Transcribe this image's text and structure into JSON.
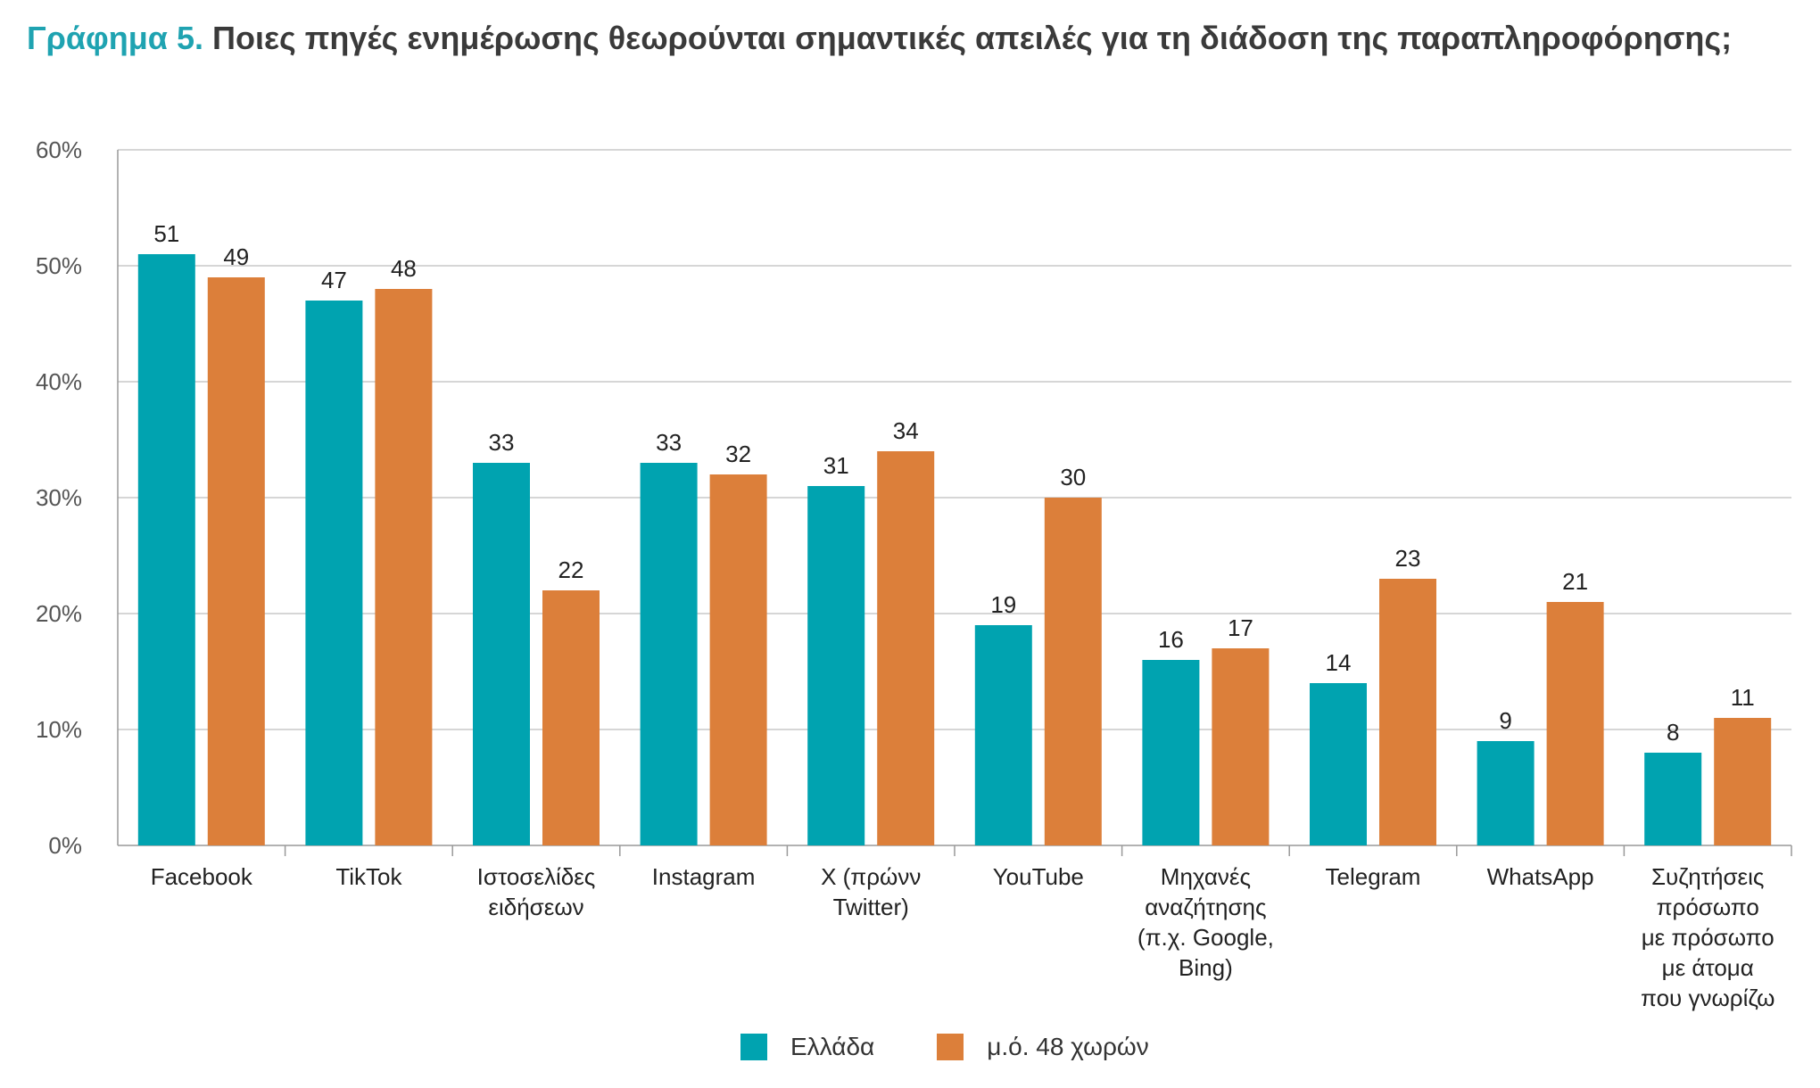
{
  "title": {
    "prefix": "Γράφημα 5.",
    "text": "Ποιες πηγές ενημέρωσης θεωρούνται σημαντικές απειλές για τη διάδοση της παραπληροφόρησης;"
  },
  "colors": {
    "greece": "#00a3b0",
    "avg": "#dc7f3a"
  },
  "chart_data": {
    "type": "bar",
    "categories": [
      [
        "Facebook"
      ],
      [
        "TikTok"
      ],
      [
        "Ιστοσελίδες",
        "ειδήσεων"
      ],
      [
        "Instagram"
      ],
      [
        "X (πρώνν",
        "Twitter)"
      ],
      [
        "YouTube"
      ],
      [
        "Μηχανές",
        "αναζήτησης",
        "(π.χ. Google,",
        "Bing)"
      ],
      [
        "Telegram"
      ],
      [
        "WhatsApp"
      ],
      [
        "Συζητήσεις",
        "πρόσωπο",
        "με πρόσωπο",
        "με άτομα",
        "που γνωρίζω"
      ]
    ],
    "series": [
      {
        "name": "Ελλάδα",
        "values": [
          51,
          47,
          33,
          33,
          31,
          19,
          16,
          14,
          9,
          8
        ]
      },
      {
        "name": "μ.ό. 48 χωρών",
        "values": [
          49,
          48,
          22,
          32,
          34,
          30,
          17,
          23,
          21,
          11
        ]
      }
    ],
    "yticks": [
      "0%",
      "10%",
      "20%",
      "30%",
      "40%",
      "50%",
      "60%"
    ],
    "ylim": [
      0,
      60
    ],
    "grid": true,
    "legend": "bottom"
  }
}
